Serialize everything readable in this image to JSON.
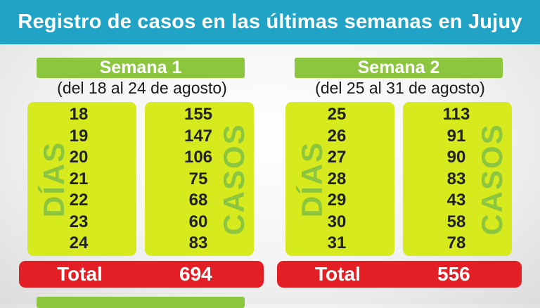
{
  "header": {
    "title": "Registro de casos en las últimas semanas en Jujuy"
  },
  "weeks": [
    {
      "label": "Semana 1",
      "range": "(del 18 al 24 de agosto)",
      "days_label": "DÍAS",
      "cases_label": "CASOS",
      "days": [
        "18",
        "19",
        "20",
        "21",
        "22",
        "23",
        "24"
      ],
      "cases": [
        "155",
        "147",
        "106",
        "75",
        "68",
        "60",
        "83"
      ],
      "total_label": "Total",
      "total": "694"
    },
    {
      "label": "Semana 2",
      "range": "(del 25 al 31 de agosto)",
      "days_label": "DÍAS",
      "cases_label": "CASOS",
      "days": [
        "25",
        "26",
        "27",
        "28",
        "29",
        "30",
        "31"
      ],
      "cases": [
        "113",
        "91",
        "90",
        "83",
        "43",
        "58",
        "78"
      ],
      "total_label": "Total",
      "total": "556"
    }
  ],
  "colors": {
    "header_bg": "#21a3c5",
    "week_label_bg": "#8cc63f",
    "table_bg": "#d6ea1e",
    "total_bg": "#e31e24"
  }
}
